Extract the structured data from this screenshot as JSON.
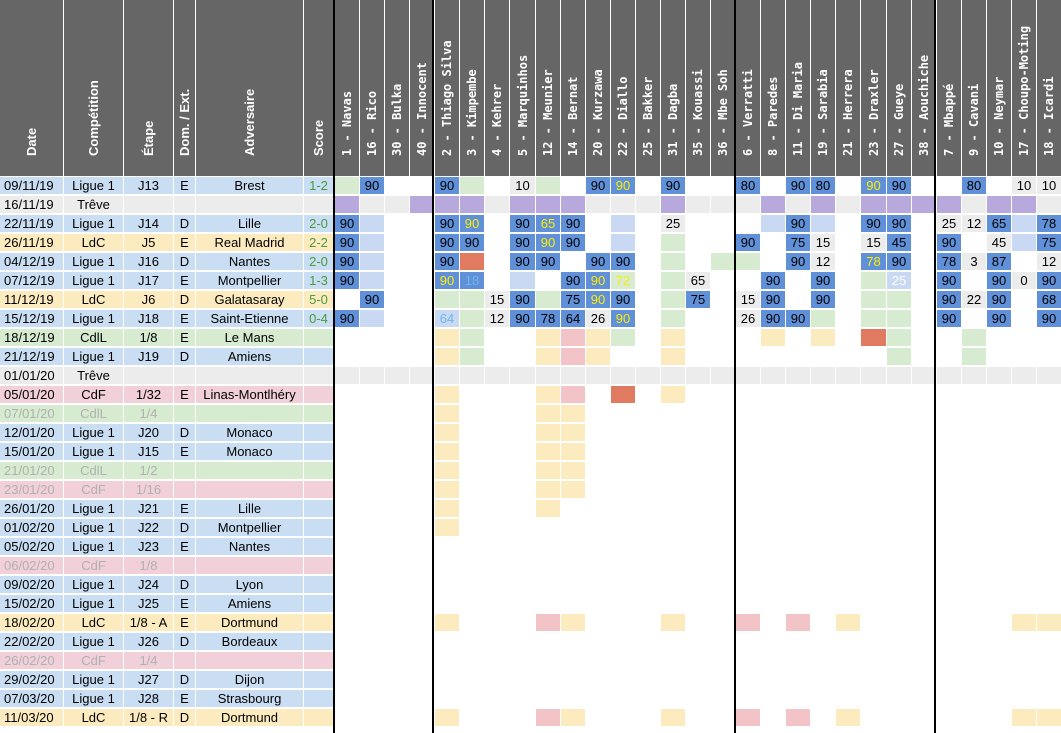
{
  "info_headers": [
    "Date",
    "Compétition",
    "Étape",
    "Dom. / Ext.",
    "Adversaire",
    "Score"
  ],
  "players": [
    {
      "num": "1",
      "name": "Navas"
    },
    {
      "num": "16",
      "name": "Rico"
    },
    {
      "num": "30",
      "name": "Bulka"
    },
    {
      "num": "40",
      "name": "Innocent"
    },
    {
      "num": "2",
      "name": "Thiago Silva"
    },
    {
      "num": "3",
      "name": "Kimpembe"
    },
    {
      "num": "4",
      "name": "Kehrer"
    },
    {
      "num": "5",
      "name": "Marquinhos"
    },
    {
      "num": "12",
      "name": "Meunier"
    },
    {
      "num": "14",
      "name": "Bernat"
    },
    {
      "num": "20",
      "name": "Kurzawa"
    },
    {
      "num": "22",
      "name": "Diallo"
    },
    {
      "num": "25",
      "name": "Bakker"
    },
    {
      "num": "31",
      "name": "Dagba"
    },
    {
      "num": "35",
      "name": "Kouassi"
    },
    {
      "num": "36",
      "name": "Mbe Soh"
    },
    {
      "num": "6",
      "name": "Verratti"
    },
    {
      "num": "8",
      "name": "Paredes"
    },
    {
      "num": "11",
      "name": "Di Maria"
    },
    {
      "num": "19",
      "name": "Sarabia"
    },
    {
      "num": "21",
      "name": "Herrera"
    },
    {
      "num": "23",
      "name": "Draxler"
    },
    {
      "num": "27",
      "name": "Gueye"
    },
    {
      "num": "38",
      "name": "Aouchiche"
    },
    {
      "num": "7",
      "name": "Mbappé"
    },
    {
      "num": "9",
      "name": "Cavani"
    },
    {
      "num": "10",
      "name": "Neymar"
    },
    {
      "num": "17",
      "name": "Choupo-Moting"
    },
    {
      "num": "18",
      "name": "Icardi"
    }
  ],
  "colors": {
    "header": "#666666",
    "ligue1": "#c9def3",
    "ldc": "#fdebc0",
    "cdf": "#f2d0d9",
    "cdl": "#d6ebd0",
    "treve": "#ececec",
    "played": "#5f90d8",
    "bench": "#c9d9f3",
    "greenbench": "#d6ebd0",
    "absent": "#b8a9dc",
    "injured": "#e07a61",
    "pink": "#f2c4c8",
    "yellow": "#fdebc0"
  },
  "rows": [
    {
      "date": "09/11/19",
      "comp": "Ligue 1",
      "stage": "J13",
      "venue": "E",
      "opp": "Brest",
      "score": "1-2",
      "type": "ligue1",
      "grey": false
    },
    {
      "date": "16/11/19",
      "comp": "Trêve",
      "stage": "",
      "venue": "",
      "opp": "",
      "score": "",
      "type": "treve",
      "grey": false
    },
    {
      "date": "22/11/19",
      "comp": "Ligue 1",
      "stage": "J14",
      "venue": "D",
      "opp": "Lille",
      "score": "2-0",
      "type": "ligue1",
      "grey": false
    },
    {
      "date": "26/11/19",
      "comp": "LdC",
      "stage": "J5",
      "venue": "E",
      "opp": "Real Madrid",
      "score": "2-2",
      "type": "ldc",
      "grey": false
    },
    {
      "date": "04/12/19",
      "comp": "Ligue 1",
      "stage": "J16",
      "venue": "D",
      "opp": "Nantes",
      "score": "2-0",
      "type": "ligue1",
      "grey": false
    },
    {
      "date": "07/12/19",
      "comp": "Ligue 1",
      "stage": "J17",
      "venue": "E",
      "opp": "Montpellier",
      "score": "1-3",
      "type": "ligue1",
      "grey": false
    },
    {
      "date": "11/12/19",
      "comp": "LdC",
      "stage": "J6",
      "venue": "D",
      "opp": "Galatasaray",
      "score": "5-0",
      "type": "ldc",
      "grey": false
    },
    {
      "date": "15/12/19",
      "comp": "Ligue 1",
      "stage": "J18",
      "venue": "E",
      "opp": "Saint-Etienne",
      "score": "0-4",
      "type": "ligue1",
      "grey": false
    },
    {
      "date": "18/12/19",
      "comp": "CdlL",
      "stage": "1/8",
      "venue": "E",
      "opp": "Le Mans",
      "score": "",
      "type": "cdl",
      "grey": false
    },
    {
      "date": "21/12/19",
      "comp": "Ligue 1",
      "stage": "J19",
      "venue": "D",
      "opp": "Amiens",
      "score": "",
      "type": "ligue1",
      "grey": false
    },
    {
      "date": "01/01/20",
      "comp": "Trêve",
      "stage": "",
      "venue": "",
      "opp": "",
      "score": "",
      "type": "treve",
      "grey": false
    },
    {
      "date": "05/01/20",
      "comp": "CdF",
      "stage": "1/32",
      "venue": "E",
      "opp": "Linas-Montlhéry",
      "score": "",
      "type": "cdf",
      "grey": false
    },
    {
      "date": "07/01/20",
      "comp": "CdlL",
      "stage": "1/4",
      "venue": "",
      "opp": "",
      "score": "",
      "type": "cdl",
      "grey": true
    },
    {
      "date": "12/01/20",
      "comp": "Ligue 1",
      "stage": "J20",
      "venue": "D",
      "opp": "Monaco",
      "score": "",
      "type": "ligue1",
      "grey": false
    },
    {
      "date": "15/01/20",
      "comp": "Ligue 1",
      "stage": "J15",
      "venue": "E",
      "opp": "Monaco",
      "score": "",
      "type": "ligue1",
      "grey": false
    },
    {
      "date": "21/01/20",
      "comp": "CdlL",
      "stage": "1/2",
      "venue": "",
      "opp": "",
      "score": "",
      "type": "cdl",
      "grey": true
    },
    {
      "date": "23/01/20",
      "comp": "CdF",
      "stage": "1/16",
      "venue": "",
      "opp": "",
      "score": "",
      "type": "cdf",
      "grey": true
    },
    {
      "date": "26/01/20",
      "comp": "Ligue 1",
      "stage": "J21",
      "venue": "E",
      "opp": "Lille",
      "score": "",
      "type": "ligue1",
      "grey": false
    },
    {
      "date": "01/02/20",
      "comp": "Ligue 1",
      "stage": "J22",
      "venue": "D",
      "opp": "Montpellier",
      "score": "",
      "type": "ligue1",
      "grey": false
    },
    {
      "date": "05/02/20",
      "comp": "Ligue 1",
      "stage": "J23",
      "venue": "E",
      "opp": "Nantes",
      "score": "",
      "type": "ligue1",
      "grey": false
    },
    {
      "date": "06/02/20",
      "comp": "CdF",
      "stage": "1/8",
      "venue": "",
      "opp": "",
      "score": "",
      "type": "cdf",
      "grey": true
    },
    {
      "date": "09/02/20",
      "comp": "Ligue 1",
      "stage": "J24",
      "venue": "D",
      "opp": "Lyon",
      "score": "",
      "type": "ligue1",
      "grey": false
    },
    {
      "date": "15/02/20",
      "comp": "Ligue 1",
      "stage": "J25",
      "venue": "E",
      "opp": "Amiens",
      "score": "",
      "type": "ligue1",
      "grey": false
    },
    {
      "date": "18/02/20",
      "comp": "LdC",
      "stage": "1/8 - A",
      "venue": "E",
      "opp": "Dortmund",
      "score": "",
      "type": "ldc",
      "grey": false
    },
    {
      "date": "22/02/20",
      "comp": "Ligue 1",
      "stage": "J26",
      "venue": "D",
      "opp": "Bordeaux",
      "score": "",
      "type": "ligue1",
      "grey": false
    },
    {
      "date": "26/02/20",
      "comp": "CdF",
      "stage": "1/4",
      "venue": "",
      "opp": "",
      "score": "",
      "type": "cdf",
      "grey": true
    },
    {
      "date": "29/02/20",
      "comp": "Ligue 1",
      "stage": "J27",
      "venue": "D",
      "opp": "Dijon",
      "score": "",
      "type": "ligue1",
      "grey": false
    },
    {
      "date": "07/03/20",
      "comp": "Ligue 1",
      "stage": "J28",
      "venue": "E",
      "opp": "Strasbourg",
      "score": "",
      "type": "ligue1",
      "grey": false
    },
    {
      "date": "11/03/20",
      "comp": "LdC",
      "stage": "1/8 - R",
      "venue": "D",
      "opp": "Dortmund",
      "score": "",
      "type": "ldc",
      "grey": false
    }
  ],
  "grid": [
    [
      "G",
      "P:90",
      "",
      "",
      "P:90",
      "G",
      "",
      "T:10",
      "G",
      "",
      "P:90",
      "P:90:y",
      "",
      "P:90",
      "",
      "",
      "P:80",
      "",
      "P:90",
      "P:80",
      "",
      "P:90:y",
      "P:90",
      "",
      "",
      "P:80",
      "",
      "T:10",
      "T:10"
    ],
    [
      "A",
      "T",
      "T",
      "A",
      "A",
      "A",
      "T",
      "A",
      "A",
      "A",
      "T",
      "T",
      "T",
      "A",
      "T",
      "T",
      "T",
      "A",
      "T",
      "A",
      "T",
      "A",
      "A",
      "A",
      "A",
      "T",
      "A",
      "A",
      "T"
    ],
    [
      "P:90",
      "B",
      "",
      "",
      "P:90",
      "P:90:y",
      "",
      "P:90",
      "P:65:y",
      "P:90",
      "",
      "B",
      "",
      "T:25",
      "",
      "",
      "",
      "B",
      "P:90",
      "B",
      "",
      "P:90",
      "P:90",
      "",
      "T:25",
      "T:12",
      "P:65",
      "B",
      "P:78"
    ],
    [
      "P:90",
      "B",
      "",
      "",
      "P:90",
      "P:90",
      "",
      "P:90",
      "P:90:y",
      "P:90",
      "",
      "B",
      "",
      "G",
      "",
      "",
      "P:90",
      "",
      "P:75",
      "T:15",
      "",
      "T:15",
      "P:45",
      "",
      "P:90",
      "",
      "T:45",
      "B",
      "P:75"
    ],
    [
      "P:90",
      "B",
      "",
      "",
      "P:90",
      "I",
      "",
      "P:90",
      "P:90",
      "",
      "P:90",
      "P:90",
      "",
      "G",
      "",
      "G",
      "G",
      "",
      "P:90",
      "T:12",
      "",
      "P:78:y",
      "P:90",
      "",
      "P:78",
      "T:3",
      "P:87",
      "",
      "T:12"
    ],
    [
      "P:90",
      "B",
      "",
      "",
      "P:90:y",
      "P:18:lb",
      "",
      "B",
      "",
      "P:90",
      "P:90:y",
      "G:72:y",
      "",
      "G",
      "T:65",
      "",
      "",
      "P:90",
      "",
      "P:90",
      "",
      "G",
      "B:25:w",
      "",
      "P:90",
      "",
      "P:90",
      "T:0",
      "P:90"
    ],
    [
      "",
      "P:90",
      "",
      "",
      "G",
      "G",
      "T:15",
      "P:90",
      "G",
      "P:75",
      "P:90:y",
      "P:90",
      "",
      "G",
      "P:75",
      "",
      "T:15",
      "P:90",
      "",
      "P:90",
      "",
      "G",
      "G",
      "",
      "P:90",
      "T:22",
      "P:90",
      "",
      "P:68"
    ],
    [
      "P:90",
      "B",
      "",
      "",
      "B:64:lb",
      "G",
      "T:12",
      "P:90",
      "P:78",
      "P:64",
      "T:26",
      "P:90:y",
      "",
      "G",
      "",
      "",
      "T:26",
      "P:90",
      "P:90",
      "G",
      "",
      "G",
      "G",
      "",
      "P:90",
      "",
      "P:90",
      "",
      "P:90"
    ],
    [
      "",
      "",
      "",
      "",
      "Y",
      "G",
      "",
      "",
      "Y",
      "K",
      "Y",
      "G",
      "",
      "Y",
      "",
      "",
      "",
      "Y",
      "",
      "Y",
      "",
      "I",
      "G",
      "",
      "",
      "G",
      "",
      "",
      ""
    ],
    [
      "",
      "",
      "",
      "",
      "Y",
      "G",
      "",
      "",
      "Y",
      "K",
      "Y",
      "",
      "",
      "Y",
      "",
      "",
      "",
      "",
      "",
      "",
      "",
      "",
      "G",
      "",
      "",
      "G",
      "",
      "",
      ""
    ],
    [
      "T",
      "T",
      "T",
      "T",
      "T",
      "T",
      "T",
      "T",
      "T",
      "T",
      "T",
      "T",
      "T",
      "T",
      "T",
      "T",
      "T",
      "T",
      "T",
      "T",
      "T",
      "T",
      "T",
      "T",
      "T",
      "T",
      "T",
      "T",
      "T"
    ],
    [
      "",
      "",
      "",
      "",
      "Y",
      "",
      "",
      "",
      "Y",
      "K",
      "",
      "I",
      "",
      "Y",
      "",
      "",
      "",
      "",
      "",
      "",
      "",
      "",
      "",
      "",
      "",
      "",
      "",
      "",
      ""
    ],
    [
      "",
      "",
      "",
      "",
      "Y",
      "",
      "",
      "",
      "Y",
      "Y",
      "",
      "",
      "",
      "",
      "",
      "",
      "",
      "",
      "",
      "",
      "",
      "",
      "",
      "",
      "",
      "",
      "",
      "",
      ""
    ],
    [
      "",
      "",
      "",
      "",
      "Y",
      "",
      "",
      "",
      "Y",
      "Y",
      "",
      "",
      "",
      "",
      "",
      "",
      "",
      "",
      "",
      "",
      "",
      "",
      "",
      "",
      "",
      "",
      "",
      "",
      ""
    ],
    [
      "",
      "",
      "",
      "",
      "Y",
      "",
      "",
      "",
      "Y",
      "Y",
      "",
      "",
      "",
      "",
      "",
      "",
      "",
      "",
      "",
      "",
      "",
      "",
      "",
      "",
      "",
      "",
      "",
      "",
      ""
    ],
    [
      "",
      "",
      "",
      "",
      "Y",
      "",
      "",
      "",
      "Y",
      "Y",
      "",
      "",
      "",
      "",
      "",
      "",
      "",
      "",
      "",
      "",
      "",
      "",
      "",
      "",
      "",
      "",
      "",
      "",
      ""
    ],
    [
      "",
      "",
      "",
      "",
      "Y",
      "",
      "",
      "",
      "Y",
      "Y",
      "",
      "",
      "",
      "",
      "",
      "",
      "",
      "",
      "",
      "",
      "",
      "",
      "",
      "",
      "",
      "",
      "",
      "",
      ""
    ],
    [
      "",
      "",
      "",
      "",
      "Y",
      "",
      "",
      "",
      "Y",
      "",
      "",
      "",
      "",
      "",
      "",
      "",
      "",
      "",
      "",
      "",
      "",
      "",
      "",
      "",
      "",
      "",
      "",
      "",
      ""
    ],
    [
      "",
      "",
      "",
      "",
      "Y",
      "",
      "",
      "",
      "",
      "",
      "",
      "",
      "",
      "",
      "",
      "",
      "",
      "",
      "",
      "",
      "",
      "",
      "",
      "",
      "",
      "",
      "",
      "",
      ""
    ],
    [
      "",
      "",
      "",
      "",
      "",
      "",
      "",
      "",
      "",
      "",
      "",
      "",
      "",
      "",
      "",
      "",
      "",
      "",
      "",
      "",
      "",
      "",
      "",
      "",
      "",
      "",
      "",
      "",
      ""
    ],
    [
      "",
      "",
      "",
      "",
      "",
      "",
      "",
      "",
      "",
      "",
      "",
      "",
      "",
      "",
      "",
      "",
      "",
      "",
      "",
      "",
      "",
      "",
      "",
      "",
      "",
      "",
      "",
      "",
      ""
    ],
    [
      "",
      "",
      "",
      "",
      "",
      "",
      "",
      "",
      "",
      "",
      "",
      "",
      "",
      "",
      "",
      "",
      "",
      "",
      "",
      "",
      "",
      "",
      "",
      "",
      "",
      "",
      "",
      "",
      ""
    ],
    [
      "",
      "",
      "",
      "",
      "",
      "",
      "",
      "",
      "",
      "",
      "",
      "",
      "",
      "",
      "",
      "",
      "",
      "",
      "",
      "",
      "",
      "",
      "",
      "",
      "",
      "",
      "",
      "",
      ""
    ],
    [
      "",
      "",
      "",
      "",
      "Y",
      "",
      "",
      "",
      "K",
      "Y",
      "",
      "",
      "",
      "Y",
      "",
      "",
      "K",
      "",
      "K",
      "",
      "Y",
      "",
      "",
      "",
      "",
      "",
      "",
      "Y",
      "Y"
    ],
    [
      "",
      "",
      "",
      "",
      "",
      "",
      "",
      "",
      "",
      "",
      "",
      "",
      "",
      "",
      "",
      "",
      "",
      "",
      "",
      "",
      "",
      "",
      "",
      "",
      "",
      "",
      "",
      "",
      ""
    ],
    [
      "",
      "",
      "",
      "",
      "",
      "",
      "",
      "",
      "",
      "",
      "",
      "",
      "",
      "",
      "",
      "",
      "",
      "",
      "",
      "",
      "",
      "",
      "",
      "",
      "",
      "",
      "",
      "",
      ""
    ],
    [
      "",
      "",
      "",
      "",
      "",
      "",
      "",
      "",
      "",
      "",
      "",
      "",
      "",
      "",
      "",
      "",
      "",
      "",
      "",
      "",
      "",
      "",
      "",
      "",
      "",
      "",
      "",
      "",
      ""
    ],
    [
      "",
      "",
      "",
      "",
      "",
      "",
      "",
      "",
      "",
      "",
      "",
      "",
      "",
      "",
      "",
      "",
      "",
      "",
      "",
      "",
      "",
      "",
      "",
      "",
      "",
      "",
      "",
      "",
      ""
    ],
    [
      "",
      "",
      "",
      "",
      "Y",
      "",
      "",
      "",
      "K",
      "Y",
      "",
      "",
      "",
      "Y",
      "",
      "",
      "K",
      "",
      "K",
      "",
      "Y",
      "",
      "",
      "",
      "",
      "",
      "",
      "Y",
      "Y"
    ]
  ]
}
